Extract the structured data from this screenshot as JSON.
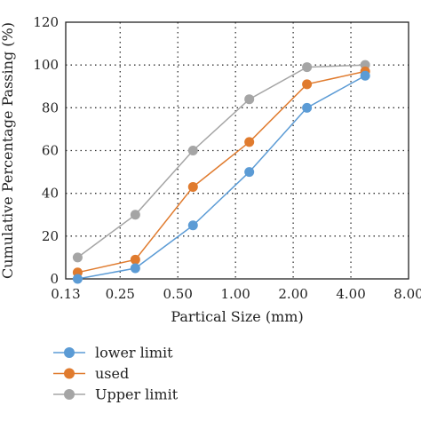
{
  "chart_data": {
    "type": "line",
    "xlabel": "Partical Size (mm)",
    "ylabel": "Cumulative Percentage Passing (%)",
    "x_scale": "log2",
    "xlim": [
      0.13,
      8.0
    ],
    "ylim": [
      0,
      120
    ],
    "x_ticks": [
      "0.13",
      "0.25",
      "0.50",
      "1.00",
      "2.00",
      "4.00",
      "8.00"
    ],
    "x_tick_values": [
      0.13,
      0.25,
      0.5,
      1.0,
      2.0,
      4.0,
      8.0
    ],
    "y_ticks": [
      "0",
      "20",
      "40",
      "60",
      "80",
      "100",
      "120"
    ],
    "y_tick_values": [
      0,
      20,
      40,
      60,
      80,
      100,
      120
    ],
    "grid": true,
    "legend_position": "bottom",
    "x": [
      0.15,
      0.3,
      0.6,
      1.18,
      2.36,
      4.75
    ],
    "series": [
      {
        "name": "lower limit",
        "color": "#5b9bd5",
        "values": [
          0,
          5,
          25,
          50,
          80,
          95
        ]
      },
      {
        "name": "used",
        "color": "#e07b2e",
        "values": [
          3,
          9,
          43,
          64,
          91,
          97
        ]
      },
      {
        "name": "Upper limit",
        "color": "#a5a5a5",
        "values": [
          10,
          30,
          60,
          84,
          99,
          100
        ]
      }
    ]
  }
}
